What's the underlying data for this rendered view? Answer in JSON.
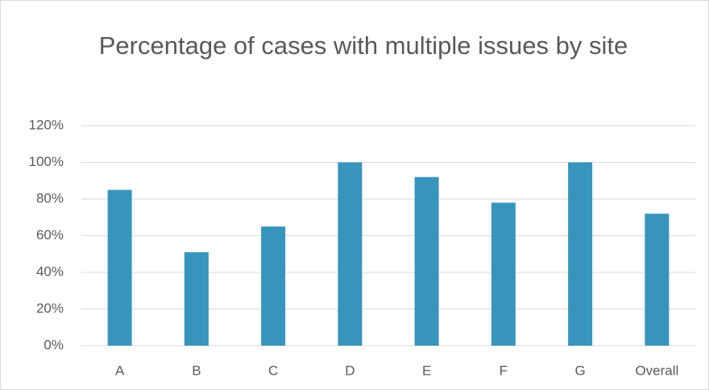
{
  "chart_data": {
    "type": "bar",
    "title": "Percentage of cases with multiple issues by site",
    "categories": [
      "A",
      "B",
      "C",
      "D",
      "E",
      "F",
      "G",
      "Overall"
    ],
    "values": [
      85,
      51,
      65,
      100,
      92,
      78,
      100,
      72
    ],
    "color": "#3795bd",
    "ylim": [
      0,
      120
    ],
    "yticks": [
      {
        "value": 0,
        "label": "0%"
      },
      {
        "value": 20,
        "label": "20%"
      },
      {
        "value": 40,
        "label": "40%"
      },
      {
        "value": 60,
        "label": "60%"
      },
      {
        "value": 80,
        "label": "80%"
      },
      {
        "value": 100,
        "label": "100%"
      },
      {
        "value": 120,
        "label": "120%"
      }
    ],
    "grid": true
  }
}
